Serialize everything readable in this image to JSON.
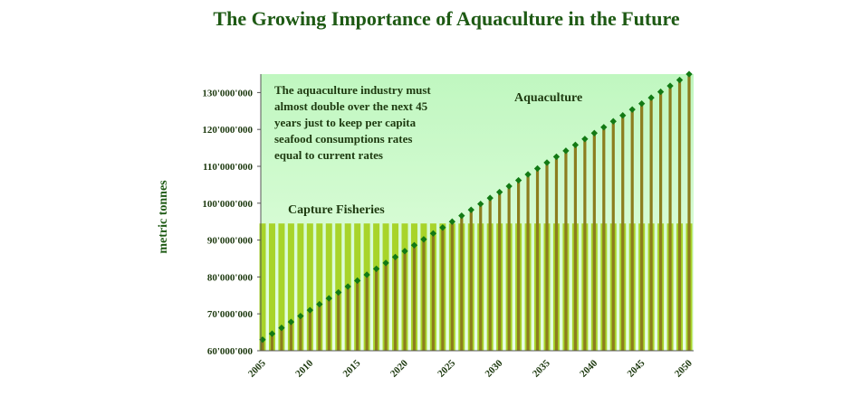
{
  "chart_data": {
    "type": "bar",
    "title": "The Growing Importance of Aquaculture in the Future",
    "ylabel": "metric tonnes",
    "xlabel": "",
    "ylim": [
      60000000,
      135000000
    ],
    "y_ticks": [
      "60'000'000",
      "70'000'000",
      "80'000'000",
      "90'000'000",
      "100'000'000",
      "110'000'000",
      "120'000'000",
      "130'000'000"
    ],
    "y_tick_values": [
      60000000,
      70000000,
      80000000,
      90000000,
      100000000,
      110000000,
      120000000,
      130000000
    ],
    "x_ticks": [
      "2005",
      "2010",
      "2015",
      "2020",
      "2025",
      "2030",
      "2035",
      "2040",
      "2045",
      "2050"
    ],
    "x_tick_values": [
      2005,
      2010,
      2015,
      2020,
      2025,
      2030,
      2035,
      2040,
      2045,
      2050
    ],
    "x_range": [
      2005,
      2050
    ],
    "capture_fisheries_level": 94500000,
    "series": [
      {
        "name": "Aquaculture",
        "start": 63000000,
        "end": 135000000,
        "color": "#8c7d1e",
        "marker_color": "#127a14"
      },
      {
        "name": "Capture Fisheries",
        "value": 94500000,
        "color": "#a8d42a"
      }
    ],
    "annotation": [
      "The aquaculture industry must",
      "almost double over the next 45",
      "years just to keep per capita",
      "seafood consumptions rates",
      "equal to current rates"
    ],
    "region_labels": {
      "aquaculture": "Aquaculture",
      "capture": "Capture Fisheries"
    },
    "colors": {
      "bg_light": "#d8ffd8",
      "bg_mid": "#c8f5c0",
      "capture_bar": "#a8d42a",
      "aquaculture_bar": "#8c7d1e",
      "marker": "#127a14",
      "title": "#1e5a14"
    }
  }
}
